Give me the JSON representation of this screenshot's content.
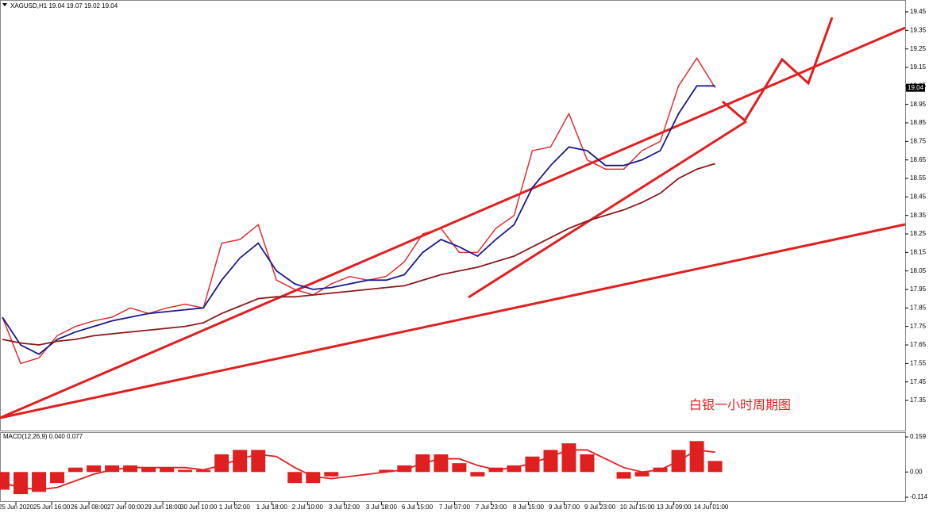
{
  "chart_data": [
    {
      "type": "line",
      "title": "XAGUSD,H1 19.04 19.07 19.02 19.04",
      "annotation": "白银一小时周期图",
      "x": [
        0,
        1,
        2,
        3,
        4,
        5,
        6,
        7,
        8,
        9,
        10,
        11,
        12,
        13,
        14,
        15,
        16,
        17,
        18,
        19,
        20,
        21,
        22,
        23,
        24,
        25,
        26,
        27,
        28,
        29,
        30,
        31,
        32,
        33,
        34,
        35,
        36,
        37,
        38,
        39
      ],
      "series": [
        {
          "color": "#e03030",
          "values": [
            17.8,
            17.55,
            17.58,
            17.7,
            17.75,
            17.78,
            17.8,
            17.85,
            17.82,
            17.85,
            17.87,
            17.85,
            18.2,
            18.22,
            18.3,
            18.0,
            17.95,
            17.92,
            17.98,
            18.02,
            18.0,
            18.02,
            18.1,
            18.25,
            18.28,
            18.15,
            18.15,
            18.28,
            18.35,
            18.7,
            18.72,
            18.9,
            18.65,
            18.6,
            18.6,
            18.7,
            18.75,
            19.05,
            19.2,
            19.04
          ]
        },
        {
          "color": "#1a1a8c",
          "values": [
            17.8,
            17.65,
            17.6,
            17.68,
            17.72,
            17.75,
            17.78,
            17.8,
            17.82,
            17.83,
            17.84,
            17.85,
            18.0,
            18.12,
            18.2,
            18.05,
            17.98,
            17.95,
            17.96,
            17.98,
            18.0,
            18.0,
            18.03,
            18.15,
            18.22,
            18.18,
            18.13,
            18.22,
            18.3,
            18.5,
            18.62,
            18.72,
            18.7,
            18.62,
            18.62,
            18.65,
            18.7,
            18.9,
            19.05,
            19.05
          ]
        },
        {
          "color": "#8b1a1a",
          "values": [
            17.68,
            17.66,
            17.65,
            17.67,
            17.68,
            17.7,
            17.71,
            17.72,
            17.73,
            17.74,
            17.75,
            17.77,
            17.82,
            17.86,
            17.9,
            17.91,
            17.91,
            17.92,
            17.93,
            17.94,
            17.95,
            17.96,
            17.97,
            18.0,
            18.03,
            18.05,
            18.07,
            18.1,
            18.13,
            18.18,
            18.23,
            18.28,
            18.32,
            18.35,
            18.38,
            18.42,
            18.47,
            18.55,
            18.6,
            18.63
          ]
        }
      ],
      "current_price": 19.04,
      "xlim": [
        0,
        49.4
      ],
      "xticks": [
        {
          "value": 0.74,
          "label": "25 Jun 2020"
        },
        {
          "value": 2.7,
          "label": "25 Jun 16:00"
        },
        {
          "value": 4.74,
          "label": "26 Jun 08:00"
        },
        {
          "value": 6.74,
          "label": "27 Jun 00:00"
        },
        {
          "value": 8.78,
          "label": "29 Jun 18:00"
        },
        {
          "value": 10.74,
          "label": "30 Jun 10:00"
        },
        {
          "value": 12.7,
          "label": "1 Jul 02:00"
        },
        {
          "value": 14.74,
          "label": "1 Jul 18:00"
        },
        {
          "value": 16.7,
          "label": "2 Jul 10:00"
        },
        {
          "value": 18.7,
          "label": "3 Jul 02:00"
        },
        {
          "value": 20.74,
          "label": "3 Jul 18:00"
        },
        {
          "value": 22.7,
          "label": "6 Jul 15:00"
        },
        {
          "value": 24.74,
          "label": "7 Jul 07:00"
        },
        {
          "value": 26.74,
          "label": "7 Jul 23:00"
        },
        {
          "value": 28.78,
          "label": "8 Jul 15:00"
        },
        {
          "value": 30.74,
          "label": "9 Jul 07:00"
        },
        {
          "value": 32.7,
          "label": "9 Jul 23:00"
        },
        {
          "value": 34.74,
          "label": "10 Jul 15:00"
        },
        {
          "value": 36.74,
          "label": "13 Jul 09:00"
        },
        {
          "value": 38.78,
          "label": "14 Jul 01:00"
        }
      ],
      "ylim": [
        17.28,
        19.51
      ],
      "yticks": [
        17.35,
        17.45,
        17.55,
        17.65,
        17.75,
        17.85,
        17.95,
        18.05,
        18.15,
        18.25,
        18.35,
        18.45,
        18.55,
        18.65,
        18.75,
        18.85,
        18.95,
        19.05,
        19.15,
        19.25,
        19.35,
        19.45
      ]
    },
    {
      "type": "macd",
      "title": "MACD(12,26,9) 0.040 0.077",
      "x": [
        0,
        1,
        2,
        3,
        4,
        5,
        6,
        7,
        8,
        9,
        10,
        11,
        12,
        13,
        14,
        15,
        16,
        17,
        18,
        19,
        20,
        21,
        22,
        23,
        24,
        25,
        26,
        27,
        28,
        29,
        30,
        31,
        32,
        33,
        34,
        35,
        36,
        37,
        38,
        39
      ],
      "series": [
        {
          "color": "#e02020",
          "values": [
            -0.08,
            -0.1,
            -0.09,
            -0.05,
            0.02,
            0.03,
            0.03,
            0.03,
            0.02,
            0.02,
            0.01,
            0.01,
            0.08,
            0.1,
            0.1,
            0.0,
            -0.05,
            -0.05,
            -0.02,
            0.0,
            0.0,
            0.01,
            0.03,
            0.08,
            0.08,
            0.04,
            -0.02,
            0.02,
            0.03,
            0.07,
            0.1,
            0.13,
            0.08,
            0.0,
            -0.03,
            -0.02,
            0.02,
            0.1,
            0.14,
            0.05
          ]
        },
        {
          "color": "#e02020",
          "values": [
            -0.05,
            -0.07,
            -0.08,
            -0.07,
            -0.04,
            -0.01,
            0.01,
            0.02,
            0.02,
            0.02,
            0.02,
            0.01,
            0.03,
            0.06,
            0.08,
            0.07,
            0.02,
            -0.02,
            -0.03,
            -0.02,
            -0.01,
            0.0,
            0.01,
            0.04,
            0.06,
            0.06,
            0.03,
            0.01,
            0.02,
            0.04,
            0.07,
            0.1,
            0.1,
            0.06,
            0.02,
            0.0,
            0.01,
            0.05,
            0.1,
            0.09
          ]
        }
      ],
      "xlim": [
        0,
        49.4
      ],
      "ylim": [
        -0.114,
        0.159
      ],
      "yticks": [
        0.159,
        {
          "value": 0,
          "label": "0.00"
        },
        -0.114
      ]
    }
  ]
}
